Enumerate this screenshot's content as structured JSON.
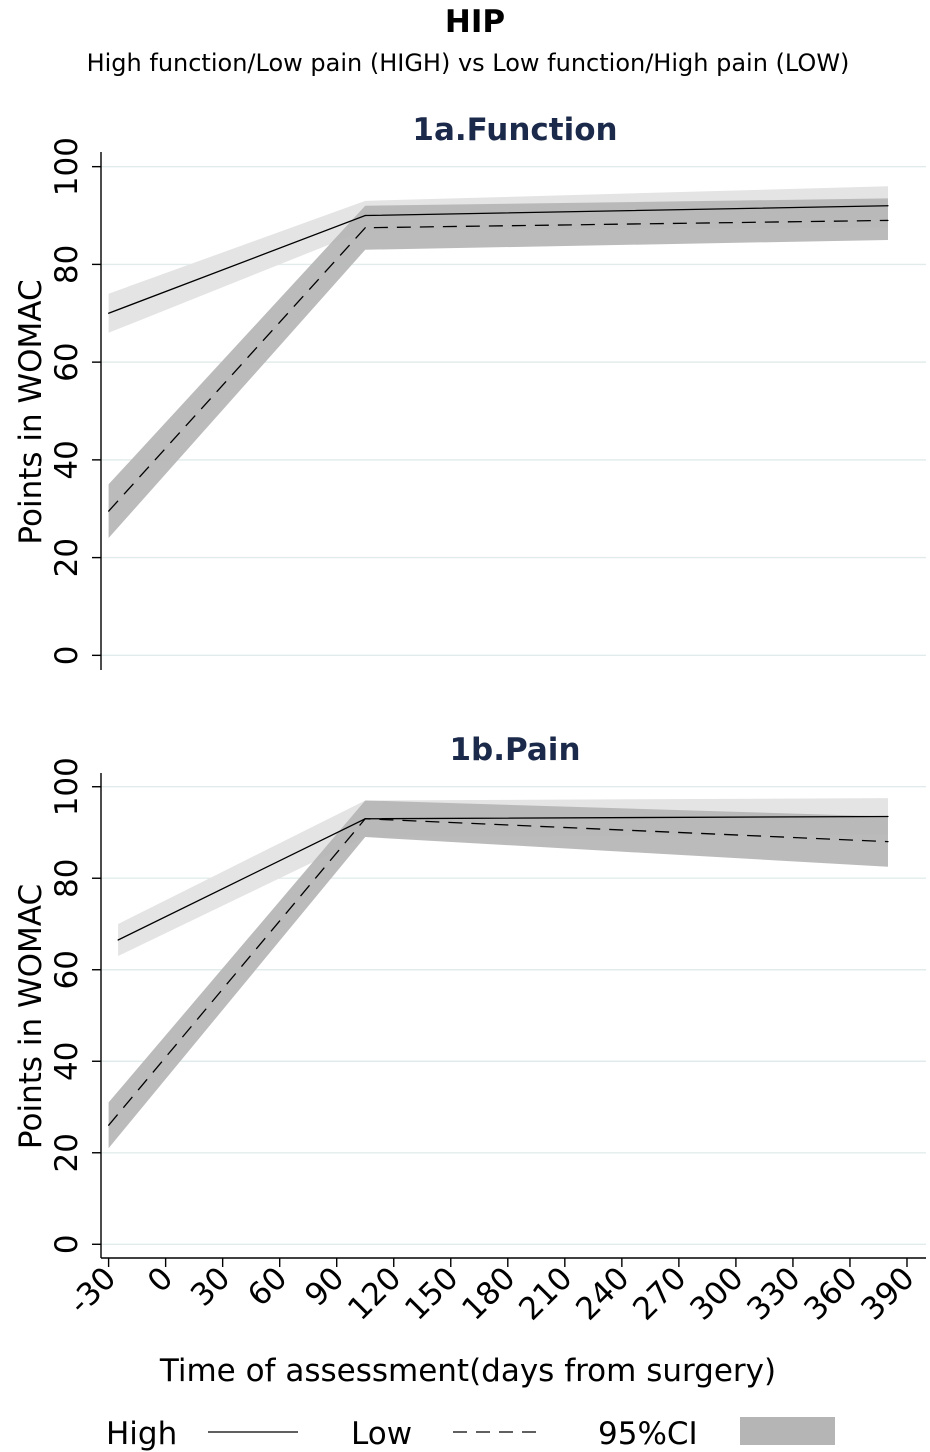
{
  "figure": {
    "title": "HIP",
    "subtitle": "High function/Low pain (HIGH) vs Low function/High pain (LOW)",
    "xlabel": "Time of assessment(days from surgery)",
    "legend": {
      "high": "High",
      "low": "Low",
      "ci": "95%CI"
    }
  },
  "colors": {
    "line": "#000000",
    "ci_high": "#e4e4e4",
    "ci_low": "#b5b5b5",
    "panel_title": "#1b2a4a",
    "grid": "#e2ebeb"
  },
  "chart_data": [
    {
      "type": "line",
      "title": "1a.Function",
      "xlabel": "Time of assessment(days from surgery)",
      "ylabel": "Points in WOMAC",
      "xlim": [
        -34,
        400
      ],
      "ylim": [
        -3,
        103
      ],
      "x_ticks": [
        -30,
        0,
        30,
        60,
        90,
        120,
        150,
        180,
        210,
        240,
        270,
        300,
        330,
        360,
        390
      ],
      "y_ticks": [
        0,
        20,
        40,
        60,
        80,
        100
      ],
      "grid": true,
      "legend_position": "bottom",
      "series": [
        {
          "name": "High",
          "style": "solid",
          "x": [
            -30,
            105,
            380
          ],
          "y": [
            70,
            90,
            92
          ],
          "ci_lower": [
            66,
            87,
            87.5
          ],
          "ci_upper": [
            74,
            93,
            96
          ]
        },
        {
          "name": "Low",
          "style": "dashed",
          "x": [
            -30,
            105,
            380
          ],
          "y": [
            29.5,
            87.5,
            89
          ],
          "ci_lower": [
            24,
            83,
            85
          ],
          "ci_upper": [
            35,
            92,
            93.5
          ]
        }
      ]
    },
    {
      "type": "line",
      "title": "1b.Pain",
      "xlabel": "Time of assessment(days from surgery)",
      "ylabel": "Points in WOMAC",
      "xlim": [
        -34,
        400
      ],
      "ylim": [
        -3,
        103
      ],
      "x_ticks": [
        -30,
        0,
        30,
        60,
        90,
        120,
        150,
        180,
        210,
        240,
        270,
        300,
        330,
        360,
        390
      ],
      "y_ticks": [
        0,
        20,
        40,
        60,
        80,
        100
      ],
      "grid": true,
      "legend_position": "bottom",
      "series": [
        {
          "name": "High",
          "style": "solid",
          "x": [
            -25,
            105,
            380
          ],
          "y": [
            66.5,
            93,
            93.5
          ],
          "ci_lower": [
            63,
            89,
            89.5
          ],
          "ci_upper": [
            70,
            97,
            97.5
          ]
        },
        {
          "name": "Low",
          "style": "dashed",
          "x": [
            -30,
            105,
            380
          ],
          "y": [
            26,
            93,
            88
          ],
          "ci_lower": [
            21,
            89,
            82.5
          ],
          "ci_upper": [
            31,
            97,
            93.5
          ]
        }
      ]
    }
  ]
}
